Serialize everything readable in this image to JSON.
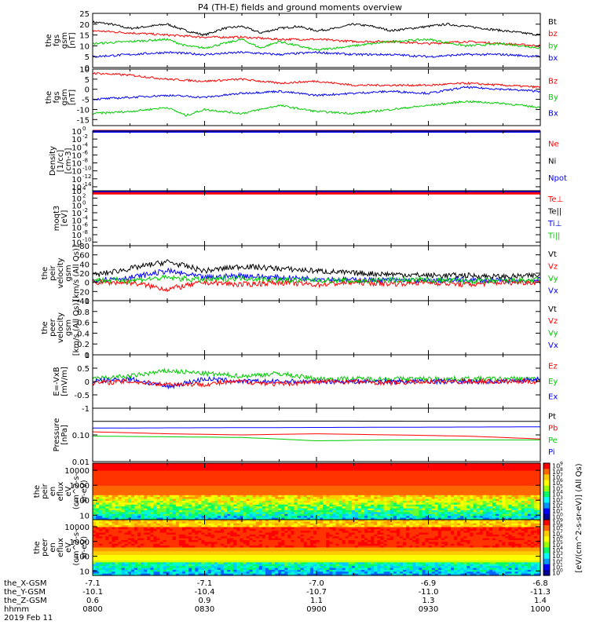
{
  "title": "P4 (TH-E) fields and ground moments overview",
  "chart_data": [
    {
      "panel": "fgs_gsm_magnitude",
      "type": "line",
      "ylabel": [
        "the",
        "fgs",
        "gsm",
        "[nT]"
      ],
      "ylim": [
        0,
        25
      ],
      "yticks": [
        0,
        5,
        10,
        15,
        20,
        25
      ],
      "legend": [
        {
          "name": "Bt",
          "color": "#000000"
        },
        {
          "name": "bz",
          "color": "#ff0000"
        },
        {
          "name": "by",
          "color": "#00cc00"
        },
        {
          "name": "bx",
          "color": "#0000ff"
        }
      ],
      "series": [
        {
          "name": "Bt",
          "color": "#000000",
          "x": [
            0,
            5,
            10,
            15,
            20,
            25,
            30,
            35,
            40,
            45,
            50,
            55,
            60,
            65,
            70,
            75,
            80,
            85,
            90,
            95,
            100,
            105,
            110,
            115,
            120
          ],
          "values": [
            21,
            20,
            18,
            19,
            20,
            17,
            15,
            18,
            19,
            16,
            18,
            19,
            17,
            18,
            20,
            19,
            17,
            18,
            19,
            20,
            19,
            18,
            17,
            16,
            15
          ]
        },
        {
          "name": "bz",
          "color": "#ff0000",
          "x": [
            0,
            10,
            20,
            30,
            40,
            50,
            60,
            70,
            80,
            90,
            100,
            110,
            120
          ],
          "values": [
            17,
            16,
            15,
            14,
            14,
            13,
            13,
            12,
            12,
            11,
            12,
            11,
            10
          ]
        },
        {
          "name": "by",
          "color": "#00cc00",
          "x": [
            0,
            10,
            20,
            25,
            30,
            40,
            45,
            50,
            60,
            70,
            80,
            90,
            100,
            110,
            120
          ],
          "values": [
            11,
            12,
            13,
            10,
            9,
            13,
            9,
            12,
            8,
            10,
            12,
            13,
            10,
            11,
            9
          ]
        },
        {
          "name": "bx",
          "color": "#0000ff",
          "x": [
            0,
            10,
            20,
            30,
            40,
            50,
            60,
            70,
            80,
            90,
            100,
            110,
            120
          ],
          "values": [
            5,
            6,
            7,
            6,
            7,
            6,
            7,
            6,
            6,
            5,
            6,
            6,
            5
          ]
        }
      ]
    },
    {
      "panel": "fgs_gsm_components",
      "type": "line",
      "ylabel": [
        "the",
        "fgs",
        "gsm",
        "[nT]"
      ],
      "ylim": [
        -18,
        10
      ],
      "yticks": [
        -15,
        -10,
        -5,
        0,
        5,
        10
      ],
      "legend": [
        {
          "name": "Bz",
          "color": "#ff0000"
        },
        {
          "name": "By",
          "color": "#00cc00"
        },
        {
          "name": "Bx",
          "color": "#0000ff"
        }
      ],
      "series": [
        {
          "name": "Bz",
          "color": "#ff0000",
          "x": [
            0,
            10,
            20,
            30,
            40,
            50,
            60,
            70,
            80,
            90,
            100,
            110,
            120
          ],
          "values": [
            8,
            7,
            5,
            4,
            5,
            3,
            4,
            2,
            2,
            2,
            3,
            2,
            1
          ]
        },
        {
          "name": "By",
          "color": "#00cc00",
          "x": [
            0,
            10,
            20,
            25,
            30,
            40,
            50,
            60,
            70,
            80,
            90,
            100,
            110,
            120
          ],
          "values": [
            -12,
            -11,
            -9,
            -13,
            -10,
            -12,
            -8,
            -11,
            -12,
            -10,
            -8,
            -6,
            -7,
            -9
          ]
        },
        {
          "name": "Bx",
          "color": "#0000ff",
          "x": [
            0,
            10,
            20,
            30,
            40,
            50,
            60,
            70,
            80,
            90,
            100,
            110,
            120
          ],
          "values": [
            -5,
            -4,
            -3,
            -4,
            -2,
            -1,
            -3,
            -2,
            -1,
            -2,
            1,
            0,
            -1
          ]
        }
      ]
    },
    {
      "panel": "density",
      "type": "line",
      "ylabel": [
        "Density",
        "[1/cc]",
        "[cm-3]"
      ],
      "scale": "log",
      "ylim": [
        1e-15,
        1
      ],
      "yticks": [
        "10^0",
        "10^-2",
        "10^-4",
        "10^-6",
        "10^-8",
        "10^-10",
        "10^-12",
        "10^-14"
      ],
      "legend": [
        {
          "name": "Ne",
          "color": "#ff0000"
        },
        {
          "name": "Ni",
          "color": "#000000"
        },
        {
          "name": "Npot",
          "color": "#0000ff"
        }
      ],
      "series": [
        {
          "name": "Ne",
          "color": "#ff0000",
          "x": [
            0,
            120
          ],
          "values": [
            1,
            1
          ]
        },
        {
          "name": "Npot",
          "color": "#0000ff",
          "x": [
            0,
            120
          ],
          "values": [
            0.8,
            0.8
          ]
        }
      ]
    },
    {
      "panel": "moqt3",
      "type": "line",
      "ylabel": [
        "moqt3",
        "[eV]"
      ],
      "scale": "log",
      "ylim": [
        1e-11,
        10000.0
      ],
      "yticks": [
        "10^4",
        "10^2",
        "10^0",
        "10^-2",
        "10^-4",
        "10^-6",
        "10^-8",
        "10^-10"
      ],
      "legend": [
        {
          "name": "Te⊥",
          "color": "#ff0000"
        },
        {
          "name": "Te||",
          "color": "#000000"
        },
        {
          "name": "Ti⊥",
          "color": "#0000ff"
        },
        {
          "name": "Ti||",
          "color": "#00cc00"
        }
      ],
      "series": [
        {
          "name": "Ti⊥",
          "color": "#0000ff",
          "x": [
            0,
            120
          ],
          "values": [
            4000,
            4000
          ]
        },
        {
          "name": "Te⊥",
          "color": "#ff0000",
          "x": [
            0,
            120
          ],
          "values": [
            2000,
            2000
          ]
        }
      ]
    },
    {
      "panel": "peir_velocity",
      "type": "line",
      "ylabel": [
        "the",
        "peir",
        "velocity",
        "gsm",
        "[km/s (All Qs)]"
      ],
      "ylim": [
        -40,
        80
      ],
      "yticks": [
        -40,
        -20,
        0,
        20,
        40,
        60,
        80
      ],
      "legend": [
        {
          "name": "Vt",
          "color": "#000000"
        },
        {
          "name": "Vz",
          "color": "#ff0000"
        },
        {
          "name": "Vy",
          "color": "#00cc00"
        },
        {
          "name": "Vx",
          "color": "#0000ff"
        }
      ],
      "series": [
        {
          "name": "Vt",
          "color": "#000000",
          "x": [
            0,
            10,
            20,
            30,
            40,
            50,
            60,
            70,
            80,
            90,
            100,
            110,
            120
          ],
          "values": [
            15,
            30,
            45,
            25,
            35,
            30,
            25,
            20,
            18,
            15,
            15,
            12,
            15
          ]
        },
        {
          "name": "Vx",
          "color": "#0000ff",
          "x": [
            0,
            10,
            20,
            30,
            40,
            50,
            60,
            70,
            80,
            90,
            100,
            110,
            120
          ],
          "values": [
            5,
            10,
            25,
            10,
            15,
            10,
            8,
            5,
            5,
            3,
            5,
            3,
            5
          ]
        },
        {
          "name": "Vz",
          "color": "#ff0000",
          "x": [
            0,
            10,
            20,
            30,
            40,
            50,
            60,
            70,
            80,
            90,
            100,
            110,
            120
          ],
          "values": [
            0,
            0,
            -15,
            0,
            -5,
            0,
            -5,
            0,
            -3,
            0,
            -5,
            0,
            0
          ]
        },
        {
          "name": "Vy",
          "color": "#00cc00",
          "x": [
            0,
            10,
            20,
            30,
            40,
            50,
            60,
            70,
            80,
            90,
            100,
            110,
            120
          ],
          "values": [
            5,
            5,
            10,
            5,
            10,
            5,
            5,
            3,
            5,
            5,
            3,
            3,
            5
          ]
        }
      ]
    },
    {
      "panel": "peer_velocity",
      "type": "line",
      "ylabel": [
        "the",
        "peer",
        "velocity",
        "gsm",
        "[km/s (All Qs)]"
      ],
      "ylim": [
        0,
        1
      ],
      "yticks": [
        0.0,
        0.2,
        0.4,
        0.6,
        0.8,
        1.0
      ],
      "legend": [
        {
          "name": "Vt",
          "color": "#000000"
        },
        {
          "name": "Vz",
          "color": "#ff0000"
        },
        {
          "name": "Vy",
          "color": "#00cc00"
        },
        {
          "name": "Vx",
          "color": "#0000ff"
        }
      ],
      "series": []
    },
    {
      "panel": "efield",
      "type": "line",
      "ylabel": [
        "E=-VxB",
        "[mV/m]"
      ],
      "ylim": [
        -1,
        1
      ],
      "yticks": [
        -1.0,
        -0.5,
        0.0,
        0.5,
        1.0
      ],
      "legend": [
        {
          "name": "Ez",
          "color": "#ff0000"
        },
        {
          "name": "Ey",
          "color": "#00cc00"
        },
        {
          "name": "Ex",
          "color": "#0000ff"
        }
      ],
      "series": [
        {
          "name": "Ey",
          "color": "#00cc00",
          "x": [
            0,
            10,
            20,
            30,
            40,
            50,
            60,
            70,
            80,
            90,
            100,
            110,
            120
          ],
          "values": [
            0.1,
            0.2,
            0.4,
            0.3,
            0.2,
            0.3,
            0.1,
            0.1,
            0.1,
            0.1,
            0.1,
            0.1,
            0.1
          ]
        },
        {
          "name": "Ex",
          "color": "#0000ff",
          "x": [
            0,
            10,
            20,
            30,
            40,
            50,
            60,
            70,
            80,
            90,
            100,
            110,
            120
          ],
          "values": [
            0.0,
            0.1,
            -0.2,
            0.1,
            0.0,
            0.0,
            0.0,
            0.0,
            0.0,
            0.0,
            0.0,
            0.0,
            0.1
          ]
        },
        {
          "name": "Ez",
          "color": "#ff0000",
          "x": [
            0,
            10,
            20,
            30,
            40,
            50,
            60,
            70,
            80,
            90,
            100,
            110,
            120
          ],
          "values": [
            -0.05,
            0.0,
            -0.1,
            -0.1,
            0.0,
            -0.1,
            0.0,
            0.0,
            -0.05,
            0.0,
            0.0,
            0.0,
            0.0
          ]
        }
      ]
    },
    {
      "panel": "pressure",
      "type": "line",
      "ylabel": [
        "Pressure",
        "[nPa]"
      ],
      "scale": "log",
      "ylim": [
        0.01,
        1
      ],
      "yticks": [
        "0.10",
        "0.01"
      ],
      "legend": [
        {
          "name": "Pt",
          "color": "#000000"
        },
        {
          "name": "Pb",
          "color": "#ff0000"
        },
        {
          "name": "Pe",
          "color": "#00cc00"
        },
        {
          "name": "Pi",
          "color": "#0000ff"
        }
      ],
      "series": [
        {
          "name": "Pt",
          "color": "#000000",
          "x": [
            0,
            60,
            120
          ],
          "values": [
            0.32,
            0.33,
            0.32
          ]
        },
        {
          "name": "Pi",
          "color": "#0000ff",
          "x": [
            0,
            60,
            120
          ],
          "values": [
            0.18,
            0.19,
            0.2
          ]
        },
        {
          "name": "Pb",
          "color": "#ff0000",
          "x": [
            0,
            20,
            40,
            60,
            80,
            100,
            120
          ],
          "values": [
            0.13,
            0.11,
            0.1,
            0.11,
            0.1,
            0.09,
            0.07
          ]
        },
        {
          "name": "Pe",
          "color": "#00cc00",
          "x": [
            0,
            40,
            60,
            80,
            120
          ],
          "values": [
            0.09,
            0.08,
            0.06,
            0.065,
            0.065
          ]
        }
      ]
    },
    {
      "panel": "peir_en_eflux",
      "type": "heatmap",
      "ylabel": [
        "the",
        "peir",
        "en",
        "eflux",
        "eV",
        "(cm^2-s-",
        "sr-eV)"
      ],
      "ylim": [
        5,
        30000
      ],
      "yticks": [
        "10000",
        "1000",
        "100",
        "10"
      ]
    },
    {
      "panel": "peer_en_eflux",
      "type": "heatmap",
      "ylabel": [
        "the",
        "peer",
        "en",
        "eflux",
        "eV",
        "(cm^2-s-",
        "sr-eV)"
      ],
      "ylim": [
        5,
        30000
      ],
      "yticks": [
        "10000",
        "1000",
        "100",
        "10"
      ]
    }
  ],
  "colorbar": {
    "label": "[eV/(cm^2-s-sr-eV)] (All Qs)",
    "ticks": [
      "10^9",
      "10^8",
      "10^7",
      "10^6",
      "10^5",
      "10^4",
      "10^3",
      "10^2",
      "10^1",
      "10^0"
    ]
  },
  "x_axis": {
    "rows": [
      {
        "label": "the_X-GSM",
        "values": [
          "-7.1",
          "-7.1",
          "-7.0",
          "-6.9",
          "-6.8"
        ]
      },
      {
        "label": "the_Y-GSM",
        "values": [
          "-10.1",
          "-10.4",
          "-10.7",
          "-11.0",
          "-11.3"
        ]
      },
      {
        "label": "the_Z-GSM",
        "values": [
          "0.6",
          "0.9",
          "1.1",
          "1.3",
          "1.4"
        ]
      },
      {
        "label": "hhmm",
        "values": [
          "0800",
          "0830",
          "0900",
          "0930",
          "1000"
        ]
      }
    ],
    "date": "2019 Feb 11"
  }
}
